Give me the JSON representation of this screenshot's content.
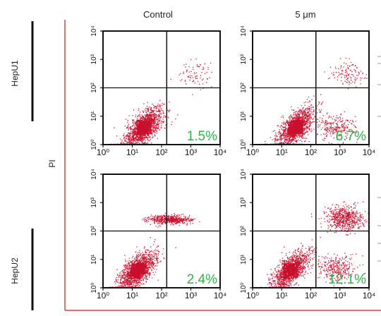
{
  "columns": [
    "Control",
    "5 μm"
  ],
  "rows": [
    "HepU1",
    "HepU2"
  ],
  "y_axis_label": "PI",
  "chart_data": [
    {
      "type": "scatter",
      "row": "HepU1",
      "column": "Control",
      "xscale": "log",
      "yscale": "log",
      "xlim": [
        1,
        10000
      ],
      "ylim": [
        1,
        10000
      ],
      "x_tick_labels": [
        "10⁰",
        "10¹",
        "10²",
        "10³",
        "10⁴"
      ],
      "y_tick_labels": [
        "10⁰",
        "10¹",
        "10²",
        "10³",
        "10⁴"
      ],
      "gate_x": 150,
      "gate_y": 100,
      "annotation": "1.5%",
      "clusters": [
        {
          "name": "main",
          "x_center": 25,
          "y_center": 4,
          "count": 1400
        },
        {
          "name": "upper-right",
          "x_center": 1500,
          "y_center": 300,
          "count": 80
        }
      ]
    },
    {
      "type": "scatter",
      "row": "HepU1",
      "column": "5 μm",
      "xscale": "log",
      "yscale": "log",
      "xlim": [
        1,
        10000
      ],
      "ylim": [
        1,
        10000
      ],
      "x_tick_labels": [
        "10⁰",
        "10¹",
        "10²",
        "10³",
        "10⁴"
      ],
      "y_tick_labels": [
        "10⁰",
        "10¹",
        "10²",
        "10³",
        "10⁴"
      ],
      "gate_x": 150,
      "gate_y": 100,
      "annotation": "6.7%",
      "clusters": [
        {
          "name": "main",
          "x_center": 30,
          "y_center": 4,
          "count": 1300
        },
        {
          "name": "lower-right",
          "x_center": 700,
          "y_center": 4,
          "count": 250
        },
        {
          "name": "upper-right",
          "x_center": 1800,
          "y_center": 300,
          "count": 120
        }
      ]
    },
    {
      "type": "scatter",
      "row": "HepU2",
      "column": "Control",
      "xscale": "log",
      "yscale": "log",
      "xlim": [
        1,
        10000
      ],
      "ylim": [
        1,
        10000
      ],
      "x_tick_labels": [
        "10⁰",
        "10¹",
        "10²",
        "10³",
        "10⁴"
      ],
      "y_tick_labels": [
        "10⁰",
        "10¹",
        "10²",
        "10³",
        "10⁴"
      ],
      "gate_x": 150,
      "gate_y": 100,
      "annotation": "2.4%",
      "clusters": [
        {
          "name": "main",
          "x_center": 15,
          "y_center": 4,
          "count": 1400
        },
        {
          "name": "upper-band",
          "x_center": 200,
          "y_center": 250,
          "count": 500
        }
      ]
    },
    {
      "type": "scatter",
      "row": "HepU2",
      "column": "5 μm",
      "xscale": "log",
      "yscale": "log",
      "xlim": [
        1,
        10000
      ],
      "ylim": [
        1,
        10000
      ],
      "x_tick_labels": [
        "10⁰",
        "10¹",
        "10²",
        "10³",
        "10⁴"
      ],
      "y_tick_labels": [
        "10⁰",
        "10¹",
        "10²",
        "10³",
        "10⁴"
      ],
      "gate_x": 150,
      "gate_y": 100,
      "annotation": "12.1%",
      "clusters": [
        {
          "name": "main",
          "x_center": 20,
          "y_center": 4,
          "count": 1200
        },
        {
          "name": "upper-right",
          "x_center": 1500,
          "y_center": 280,
          "count": 600
        },
        {
          "name": "lower-right",
          "x_center": 800,
          "y_center": 5,
          "count": 300
        }
      ]
    }
  ],
  "colors": {
    "dots": "#c8102e",
    "axis_frame": "#e04040",
    "annotation": "#2db34a",
    "text": "#222222"
  }
}
